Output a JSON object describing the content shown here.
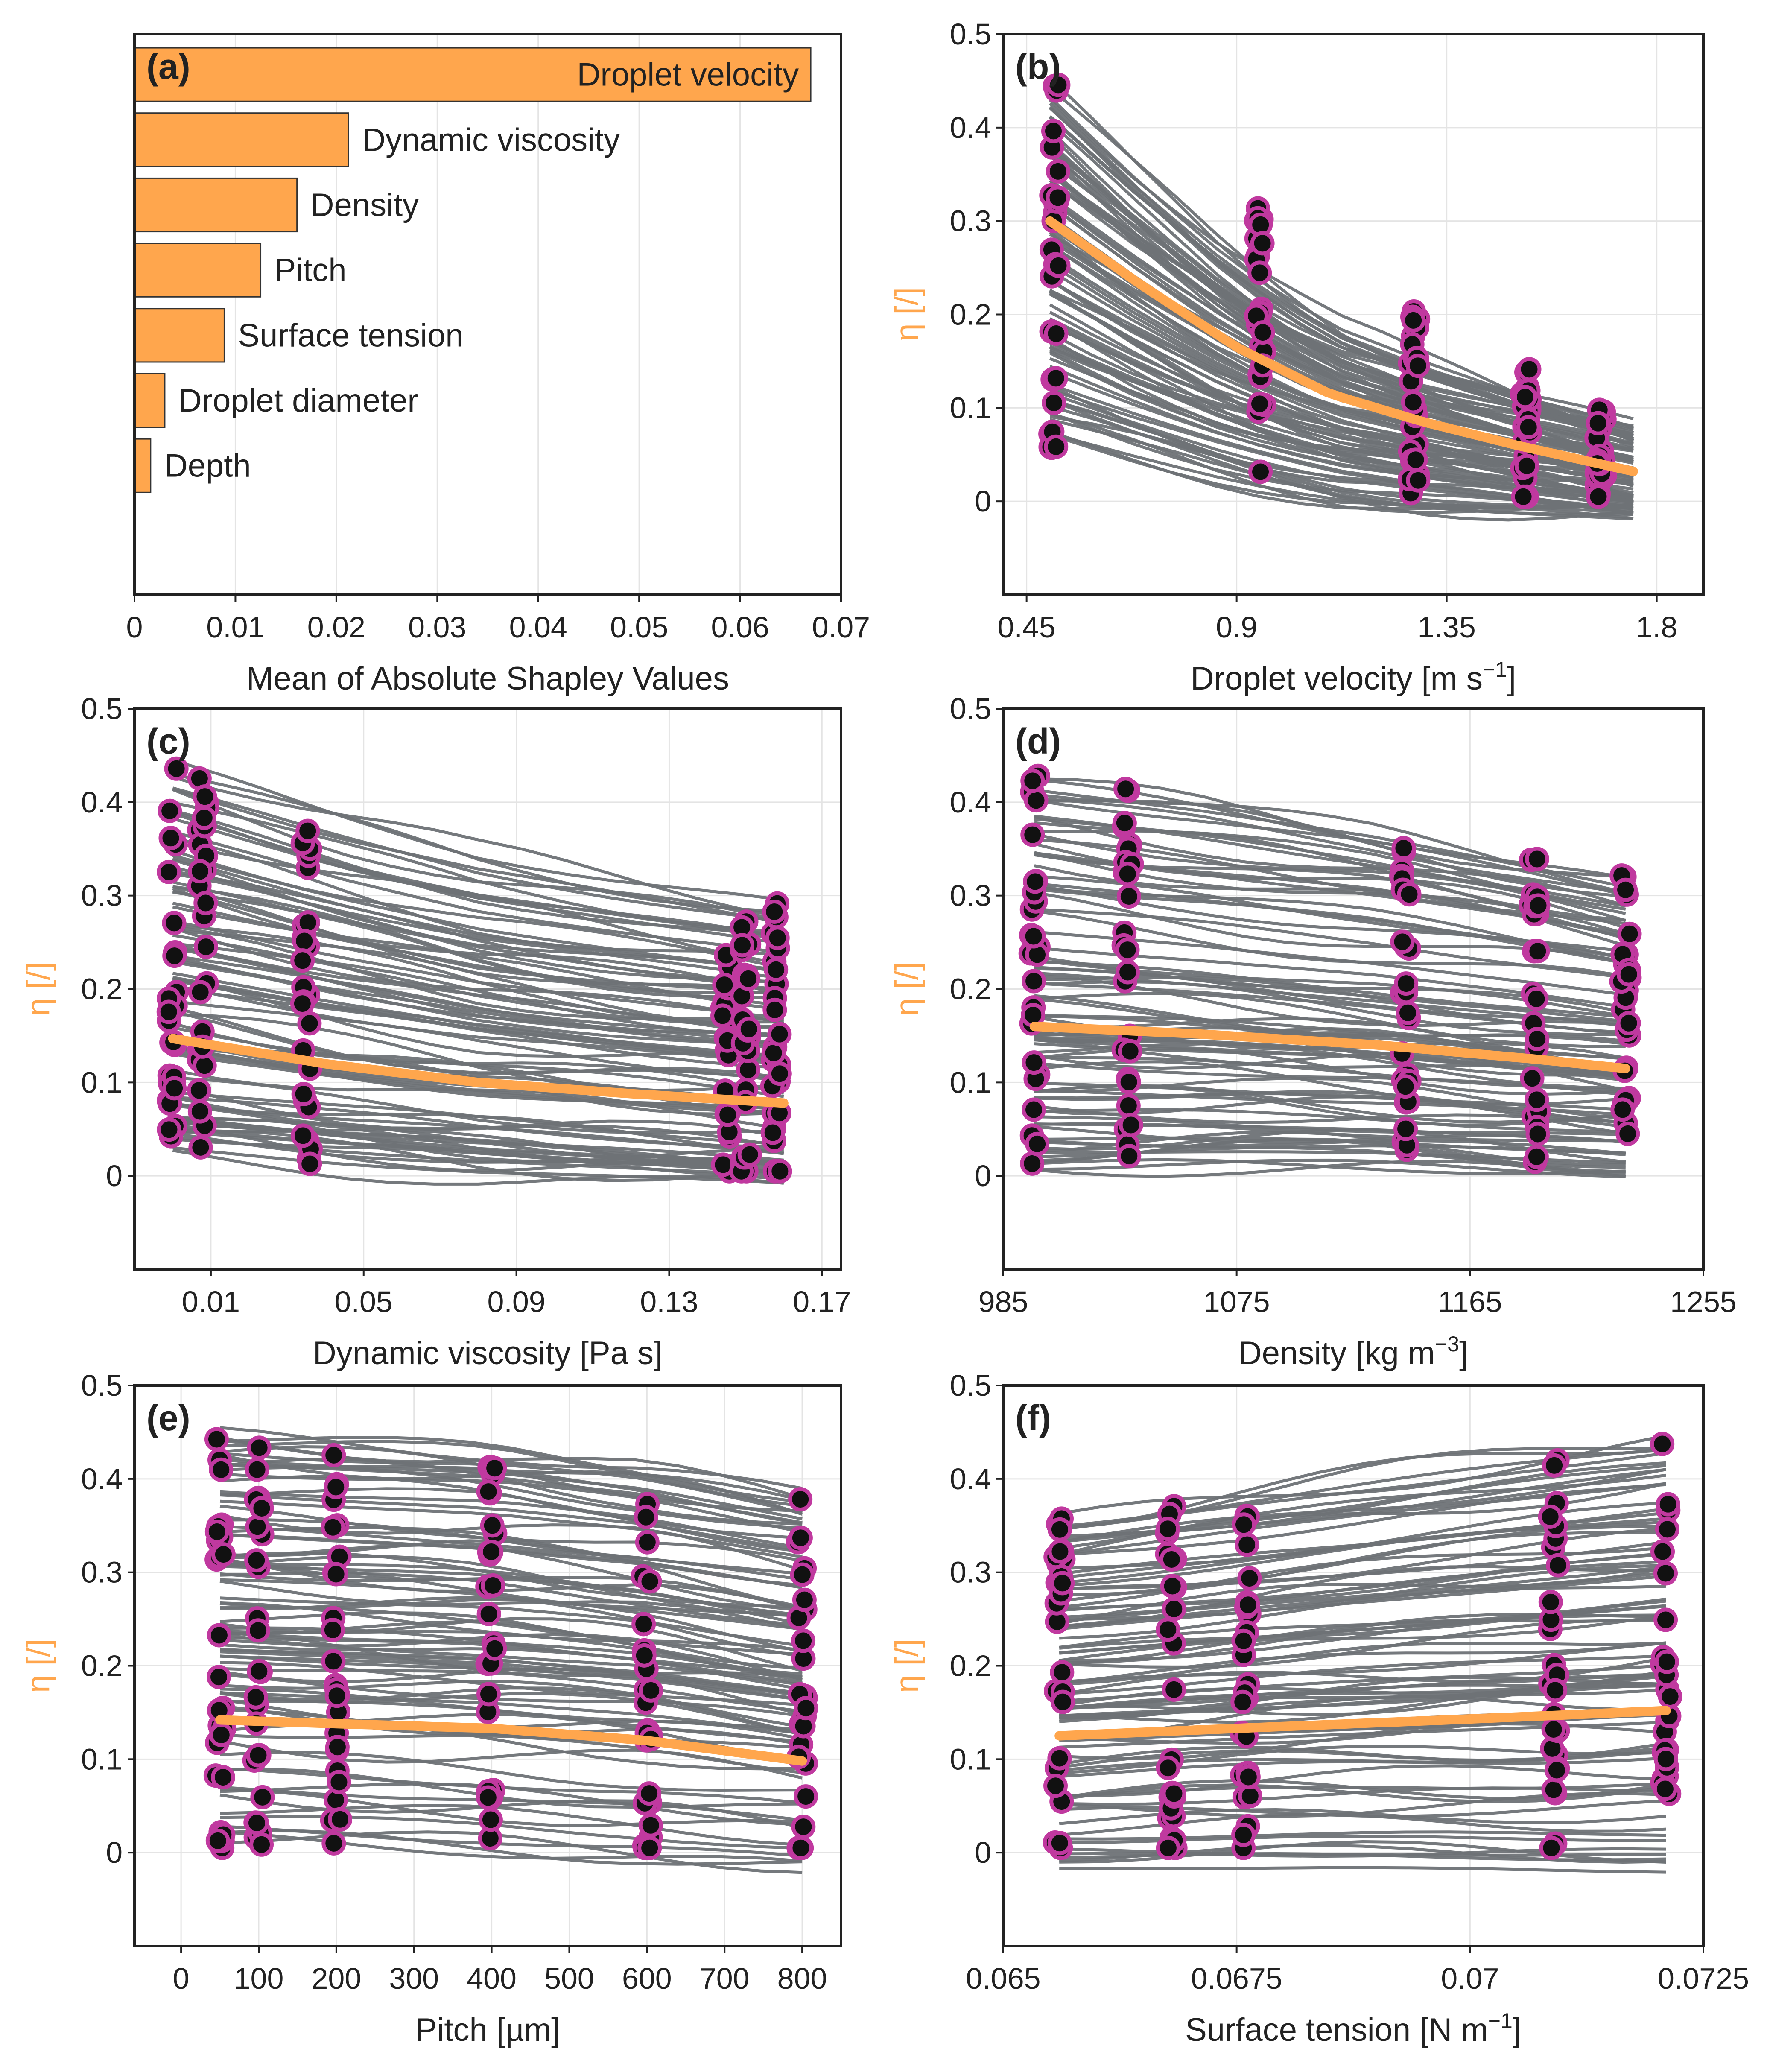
{
  "colors": {
    "orange": "#ffa64d",
    "magenta": "#c0399f",
    "grey": "#6e7276",
    "black": "#111111"
  },
  "chart_data": [
    {
      "id": "a",
      "panel_label": "(a)",
      "type": "bar",
      "orientation": "horizontal",
      "categories": [
        "Droplet velocity",
        "Dynamic viscosity",
        "Density",
        "Pitch",
        "Surface tension",
        "Droplet diameter",
        "Depth"
      ],
      "values": [
        0.067,
        0.0212,
        0.0161,
        0.0125,
        0.0089,
        0.003,
        0.0016
      ],
      "xlabel": "Mean of Absolute Shapley Values",
      "xlim": [
        0,
        0.07
      ],
      "xticks": [
        "0",
        "0.01",
        "0.02",
        "0.03",
        "0.04",
        "0.05",
        "0.06",
        "0.07"
      ],
      "grid": true
    },
    {
      "id": "b",
      "panel_label": "(b)",
      "type": "line",
      "xlabel_main": "Droplet velocity [m s",
      "xlabel_sup": "−1",
      "xlabel_end": "]",
      "ylabel": "η [/]",
      "xlim": [
        0.4,
        1.9
      ],
      "ylim": [
        -0.1,
        0.5
      ],
      "xticks": [
        "0.45",
        "0.9",
        "1.35",
        "1.8"
      ],
      "yticks": [
        "0",
        "0.1",
        "0.2",
        "0.3",
        "0.4",
        "0.5"
      ],
      "x_groups": [
        0.51,
        0.95,
        1.28,
        1.52,
        1.68
      ],
      "x_range": [
        0.5,
        1.75
      ],
      "mean_curve": {
        "x": [
          0.5,
          0.7,
          0.9,
          1.1,
          1.3,
          1.5,
          1.75
        ],
        "y": [
          0.3,
          0.23,
          0.165,
          0.115,
          0.085,
          0.06,
          0.032
        ]
      },
      "gray_band_start": [
        0.05,
        0.45
      ],
      "gray_band_end": [
        -0.025,
        0.08
      ]
    },
    {
      "id": "c",
      "panel_label": "(c)",
      "type": "line",
      "xlabel_main": "Dynamic viscosity [Pa s]",
      "ylabel": "η [/]",
      "xlim": [
        -0.01,
        0.175
      ],
      "ylim": [
        -0.1,
        0.5
      ],
      "xticks": [
        "0.01",
        "0.05",
        "0.09",
        "0.13",
        "0.17"
      ],
      "yticks": [
        "0",
        "0.1",
        "0.2",
        "0.3",
        "0.4",
        "0.5"
      ],
      "x_groups": [
        0.0,
        0.008,
        0.035,
        0.145,
        0.15,
        0.158
      ],
      "x_range": [
        0.0,
        0.16
      ],
      "mean_curve": {
        "x": [
          0.0,
          0.04,
          0.08,
          0.12,
          0.16
        ],
        "y": [
          0.147,
          0.12,
          0.1,
          0.088,
          0.078
        ]
      },
      "gray_band_start": [
        0.02,
        0.44
      ],
      "gray_band_end": [
        -0.015,
        0.29
      ]
    },
    {
      "id": "d",
      "panel_label": "(d)",
      "type": "line",
      "xlabel_main": "Density [kg m",
      "xlabel_sup": "−3",
      "xlabel_end": "]",
      "ylabel": "η [/]",
      "xlim": [
        985,
        1255
      ],
      "ylim": [
        -0.1,
        0.5
      ],
      "xticks": [
        "985",
        "1075",
        "1165",
        "1255"
      ],
      "yticks": [
        "0",
        "0.1",
        "0.2",
        "0.3",
        "0.4",
        "0.5"
      ],
      "x_groups": [
        997,
        1033,
        1140,
        1190,
        1225
      ],
      "x_range": [
        997,
        1225
      ],
      "mean_curve": {
        "x": [
          997,
          1060,
          1130,
          1190,
          1225
        ],
        "y": [
          0.16,
          0.152,
          0.14,
          0.125,
          0.115
        ]
      },
      "gray_band_start": [
        0.0,
        0.44
      ],
      "gray_band_end": [
        -0.005,
        0.33
      ]
    },
    {
      "id": "e",
      "panel_label": "(e)",
      "type": "line",
      "xlabel_main": "Pitch [µm]",
      "ylabel": "η [/]",
      "xlim": [
        -60,
        850
      ],
      "ylim": [
        -0.1,
        0.5
      ],
      "xticks": [
        "0",
        "100",
        "200",
        "300",
        "400",
        "500",
        "600",
        "700",
        "800"
      ],
      "yticks": [
        "0",
        "0.1",
        "0.2",
        "0.3",
        "0.4",
        "0.5"
      ],
      "x_groups": [
        50,
        100,
        200,
        400,
        600,
        800
      ],
      "x_range": [
        50,
        800
      ],
      "mean_curve": {
        "x": [
          50,
          200,
          400,
          600,
          800
        ],
        "y": [
          0.142,
          0.138,
          0.133,
          0.12,
          0.098
        ]
      },
      "gray_band_start": [
        0.0,
        0.445
      ],
      "gray_band_end": [
        -0.03,
        0.38
      ]
    },
    {
      "id": "f",
      "panel_label": "(f)",
      "type": "line",
      "xlabel_main": "Surface tension [N m",
      "xlabel_sup": "−1",
      "xlabel_end": "]",
      "ylabel": "η [/]",
      "xlim": [
        0.065,
        0.0725
      ],
      "ylim": [
        -0.1,
        0.5
      ],
      "xticks": [
        "0.065",
        "0.0675",
        "0.07",
        "0.0725"
      ],
      "yticks": [
        "0",
        "0.1",
        "0.2",
        "0.3",
        "0.4",
        "0.5"
      ],
      "x_groups": [
        0.0656,
        0.0668,
        0.0676,
        0.0709,
        0.0721
      ],
      "x_range": [
        0.0656,
        0.0721
      ],
      "mean_curve": {
        "x": [
          0.0656,
          0.0675,
          0.07,
          0.0721
        ],
        "y": [
          0.125,
          0.133,
          0.143,
          0.152
        ]
      },
      "gray_band_start": [
        -0.02,
        0.36
      ],
      "gray_band_end": [
        -0.025,
        0.445
      ]
    }
  ]
}
